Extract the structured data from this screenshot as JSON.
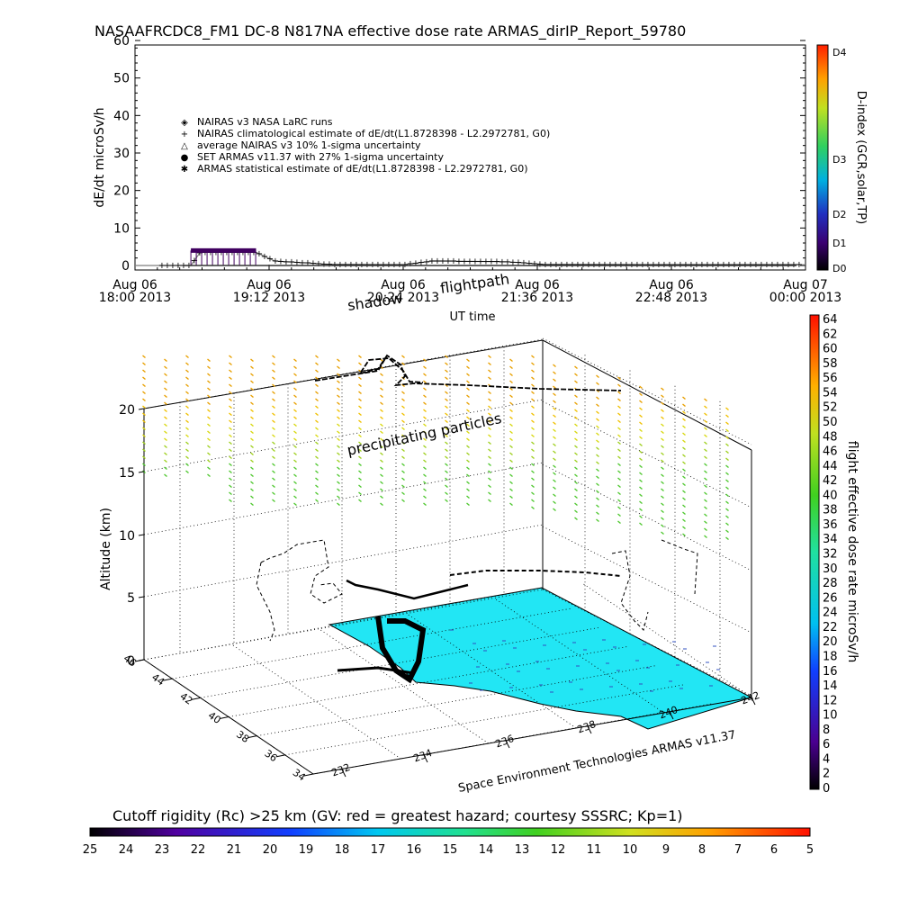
{
  "top_title": "NASAAFRCDC8_FM1 DC-8   N817NA effective dose rate ARMAS_dirIP_Report_59780",
  "top_chart": {
    "ylabel": "dE/dt microSv/h",
    "xlabel": "UT time",
    "ylim": [
      0,
      60
    ],
    "yticks": [
      "0",
      "10",
      "20",
      "30",
      "40",
      "50",
      "60"
    ],
    "xticks": [
      {
        "top": "Aug 06",
        "bottom": "18:00 2013"
      },
      {
        "top": "Aug 06",
        "bottom": "19:12 2013"
      },
      {
        "top": "Aug 06",
        "bottom": "20:24 2013"
      },
      {
        "top": "Aug 06",
        "bottom": "21:36 2013"
      },
      {
        "top": "Aug 06",
        "bottom": "22:48 2013"
      },
      {
        "top": "Aug 07",
        "bottom": "00:00 2013"
      }
    ],
    "legend": [
      {
        "symbol": "◈",
        "text": "NAIRAS v3 NASA LaRC runs"
      },
      {
        "symbol": "+",
        "text": "NAIRAS climatological estimate of dE/dt(L1.8728398 - L2.2972781, G0)"
      },
      {
        "symbol": "△",
        "text": "average NAIRAS v3 10% 1-sigma uncertainty"
      },
      {
        "symbol": "●",
        "text": "SET ARMAS v11.37 with 27% 1-sigma uncertainty"
      },
      {
        "symbol": "✱",
        "text": "ARMAS statistical estimate of dE/dt(L1.8728398 - L2.2972781, G0)"
      }
    ],
    "dindex_label": "D-index (GCR,solar,TP)",
    "dindex_ticks": [
      "D0",
      "D1",
      "D2",
      "D3",
      "D4"
    ]
  },
  "chart_data": [
    {
      "type": "line",
      "title": "NASAAFRCDC8_FM1 DC-8   N817NA effective dose rate ARMAS_dirIP_Report_59780",
      "xlabel": "UT time",
      "ylabel": "dE/dt microSv/h",
      "ylim": [
        0,
        60
      ],
      "x_range": [
        "2013-08-06 18:00",
        "2013-08-07 00:00"
      ],
      "series": [
        {
          "name": "NAIRAS climatological estimate of dE/dt(L1.8728398 - L2.2972781, G0)",
          "x": [
            "2013-08-06 18:00",
            "2013-08-06 18:30",
            "2013-08-06 18:35",
            "2013-08-06 19:05",
            "2013-08-06 19:15",
            "2013-08-06 19:45",
            "2013-08-06 20:24",
            "2013-08-06 20:40",
            "2013-08-06 21:20",
            "2013-08-06 21:40",
            "2013-08-06 22:48",
            "2013-08-07 00:00"
          ],
          "values": [
            0,
            0,
            3.5,
            3.5,
            1.2,
            0.3,
            0.2,
            1.2,
            1.0,
            0.3,
            0.2,
            0.2
          ]
        },
        {
          "name": "ARMAS statistical estimate of dE/dt(L1.8728398 - L2.2972781, G0)",
          "x": [
            "2013-08-06 18:30",
            "2013-08-06 18:40",
            "2013-08-06 19:00",
            "2013-08-06 19:05"
          ],
          "values": [
            4.0,
            4.0,
            4.0,
            4.0
          ]
        }
      ]
    },
    {
      "type": "scatter",
      "title": "Space Environment Technologies ARMAS v11.37",
      "ylabel": "Altitude (km)",
      "zlim": [
        0,
        20
      ],
      "altitude_ticks": [
        "0",
        "5",
        "10",
        "15",
        "20"
      ],
      "latitude_ticks": [
        "34",
        "36",
        "38",
        "40",
        "42",
        "44",
        "46"
      ],
      "longitude_ticks": [
        "232",
        "234",
        "236",
        "238",
        "240",
        "242"
      ],
      "annotations": [
        "shadow",
        "flightpath",
        "precipitating particles"
      ],
      "colorbar": {
        "label": "flight effective dose rate microSv/h",
        "range": [
          0,
          64
        ],
        "ticks": [
          "0",
          "2",
          "4",
          "6",
          "8",
          "10",
          "12",
          "14",
          "16",
          "18",
          "20",
          "22",
          "24",
          "26",
          "28",
          "30",
          "32",
          "34",
          "36",
          "38",
          "40",
          "42",
          "44",
          "46",
          "48",
          "50",
          "52",
          "54",
          "56",
          "58",
          "60",
          "62",
          "64"
        ]
      }
    },
    {
      "type": "heatmap",
      "title": "Cutoff rigidity (Rc) >25 km (GV: red = greatest hazard; courtesy SSSRC; Kp=1)",
      "colorbar_ticks": [
        "25",
        "24",
        "23",
        "22",
        "21",
        "20",
        "19",
        "18",
        "17",
        "16",
        "15",
        "14",
        "13",
        "12",
        "11",
        "10",
        "9",
        "8",
        "7",
        "6",
        "5"
      ]
    }
  ],
  "scene3d": {
    "annotation_shadow": "shadow",
    "annotation_flightpath": "flightpath",
    "annotation_particles": "precipitating particles",
    "altitude_label": "Altitude (km)",
    "credit": "Space Environment Technologies ARMAS v11.37",
    "colorbar_label": "flight effective dose rate microSv/h"
  },
  "bottom_bar": {
    "title": "Cutoff rigidity (Rc) >25 km (GV: red = greatest hazard; courtesy SSSRC; Kp=1)"
  },
  "colors": {
    "top_line": "#7e7e7e",
    "armas_marks": "#400060",
    "surface": "#20e0f0",
    "flight": "#000000"
  }
}
